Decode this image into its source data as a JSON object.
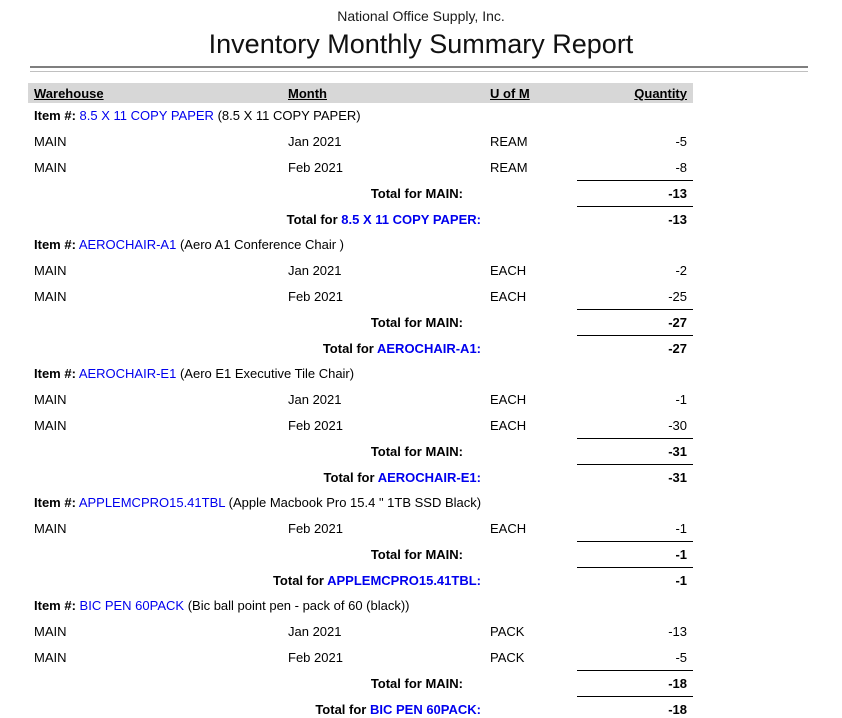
{
  "report": {
    "company": "National Office Supply, Inc.",
    "title": "Inventory Monthly Summary Report"
  },
  "labels": {
    "item_prefix": "Item #:",
    "total_for": "Total for"
  },
  "colors": {
    "link_blue": "#0000ee",
    "header_band_gray": "#d7d7d7",
    "rule_dark_gray": "#7f7f7f",
    "rule_light_gray": "#c0c0c0"
  },
  "table": {
    "headers": {
      "warehouse": "Warehouse",
      "month": "Month",
      "uom": "U of M",
      "quantity": "Quantity"
    },
    "sections": [
      {
        "item_code": "8.5 X 11 COPY PAPER",
        "item_desc": "(8.5 X 11 COPY PAPER)",
        "rows": [
          {
            "warehouse": "MAIN",
            "month": "Jan 2021",
            "uom": "REAM",
            "qty": "-5"
          },
          {
            "warehouse": "MAIN",
            "month": "Feb 2021",
            "uom": "REAM",
            "qty": "-8"
          }
        ],
        "warehouse_total_label": "Total for MAIN:",
        "warehouse_total": "-13",
        "item_code_colon": "8.5 X 11 COPY PAPER:",
        "item_total": "-13"
      },
      {
        "item_code": "AEROCHAIR-A1",
        "item_desc": "(Aero A1 Conference Chair )",
        "rows": [
          {
            "warehouse": "MAIN",
            "month": "Jan 2021",
            "uom": "EACH",
            "qty": "-2"
          },
          {
            "warehouse": "MAIN",
            "month": "Feb 2021",
            "uom": "EACH",
            "qty": "-25"
          }
        ],
        "warehouse_total_label": "Total for MAIN:",
        "warehouse_total": "-27",
        "item_code_colon": "AEROCHAIR-A1:",
        "item_total": "-27"
      },
      {
        "item_code": "AEROCHAIR-E1",
        "item_desc": "(Aero E1 Executive Tile Chair)",
        "rows": [
          {
            "warehouse": "MAIN",
            "month": "Jan 2021",
            "uom": "EACH",
            "qty": "-1"
          },
          {
            "warehouse": "MAIN",
            "month": "Feb 2021",
            "uom": "EACH",
            "qty": "-30"
          }
        ],
        "warehouse_total_label": "Total for MAIN:",
        "warehouse_total": "-31",
        "item_code_colon": "AEROCHAIR-E1:",
        "item_total": "-31"
      },
      {
        "item_code": "APPLEMCPRO15.41TBL",
        "item_desc": "(Apple Macbook Pro 15.4 \" 1TB SSD Black)",
        "rows": [
          {
            "warehouse": "MAIN",
            "month": "Feb 2021",
            "uom": "EACH",
            "qty": "-1"
          }
        ],
        "warehouse_total_label": "Total for MAIN:",
        "warehouse_total": "-1",
        "item_code_colon": "APPLEMCPRO15.41TBL:",
        "item_total": "-1"
      },
      {
        "item_code": "BIC PEN 60PACK",
        "item_desc": "(Bic ball point pen - pack of 60 (black))",
        "rows": [
          {
            "warehouse": "MAIN",
            "month": "Jan 2021",
            "uom": "PACK",
            "qty": "-13"
          },
          {
            "warehouse": "MAIN",
            "month": "Feb 2021",
            "uom": "PACK",
            "qty": "-5"
          }
        ],
        "warehouse_total_label": "Total for MAIN:",
        "warehouse_total": "-18",
        "item_code_colon": "BIC PEN 60PACK:",
        "item_total": "-18"
      }
    ]
  }
}
